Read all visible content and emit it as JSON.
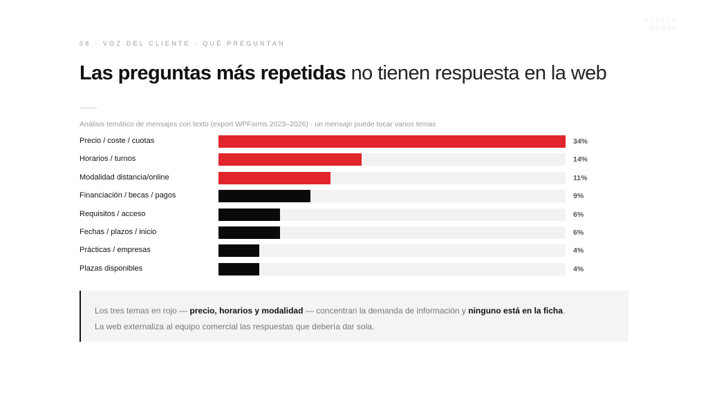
{
  "logo": {
    "line1": "PIXELO",
    "line2": "GROUP"
  },
  "eyebrow": "08 · VOZ DEL CLIENTE · QUÉ PREGUNTAN",
  "title": {
    "strong": "Las preguntas más repetidas",
    "rest": " no tienen respuesta en la web"
  },
  "subtitle": "Análisis temático de mensajes con texto (export WPForms 2023–2026) · un mensaje puede tocar varios temas",
  "colors": {
    "highlight": "#e0262b",
    "default": "#0a0a0a",
    "track": "#f2f2f2"
  },
  "chart_data": {
    "type": "bar",
    "orientation": "horizontal",
    "categories": [
      "Precio / coste / cuotas",
      "Horarios / turnos",
      "Modalidad distancia/online",
      "Financiación / becas / pagos",
      "Requisitos / acceso",
      "Fechas / plazos / inicio",
      "Prácticas / empresas",
      "Plazas disponibles"
    ],
    "values": [
      34,
      14,
      11,
      9,
      6,
      6,
      4,
      4
    ],
    "value_labels": [
      "34%",
      "14%",
      "11%",
      "9%",
      "6%",
      "6%",
      "4%",
      "4%"
    ],
    "highlighted": [
      true,
      true,
      true,
      false,
      false,
      false,
      false,
      false
    ],
    "unit": "%",
    "xlim": [
      0,
      34
    ],
    "grid": false,
    "legend": "none"
  },
  "callout": {
    "line1_a": "Los tres temas en rojo — ",
    "line1_b": "precio, horarios y modalidad",
    "line1_c": " — concentran la demanda de información y ",
    "line1_d": "ninguno está en la ficha",
    "line1_e": ".",
    "line2": "La web externaliza al equipo comercial las respuestas que debería dar sola."
  }
}
